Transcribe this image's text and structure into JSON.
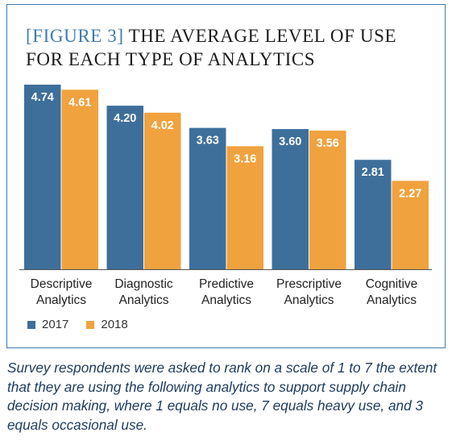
{
  "title": {
    "tag": "[FIGURE 3]",
    "text": "THE AVERAGE LEVEL OF USE FOR EACH TYPE OF ANALYTICS"
  },
  "colors": {
    "series_2017": "#3e6f9b",
    "series_2018": "#f0a23e",
    "border": "#3d7cb0",
    "caption": "#1e3a5f"
  },
  "chart_data": {
    "type": "bar",
    "categories": [
      [
        "Descriptive",
        "Analytics"
      ],
      [
        "Diagnostic",
        "Analytics"
      ],
      [
        "Predictive",
        "Analytics"
      ],
      [
        "Prescriptive",
        "Analytics"
      ],
      [
        "Cognitive",
        "Analytics"
      ]
    ],
    "series": [
      {
        "name": "2017",
        "values": [
          4.74,
          4.2,
          3.63,
          3.6,
          2.81
        ]
      },
      {
        "name": "2018",
        "values": [
          4.61,
          4.02,
          3.16,
          3.56,
          2.27
        ]
      }
    ],
    "ylim": [
      0,
      5
    ],
    "grid": false,
    "legend": "bottom-left",
    "value_labels": true
  },
  "legend": [
    {
      "label": "2017"
    },
    {
      "label": "2018"
    }
  ],
  "caption": "Survey respondents were asked to rank on a scale of 1 to 7 the extent that they are using the following analytics to support supply chain decision making, where 1 equals no use, 7 equals heavy use, and 3 equals occasional use."
}
